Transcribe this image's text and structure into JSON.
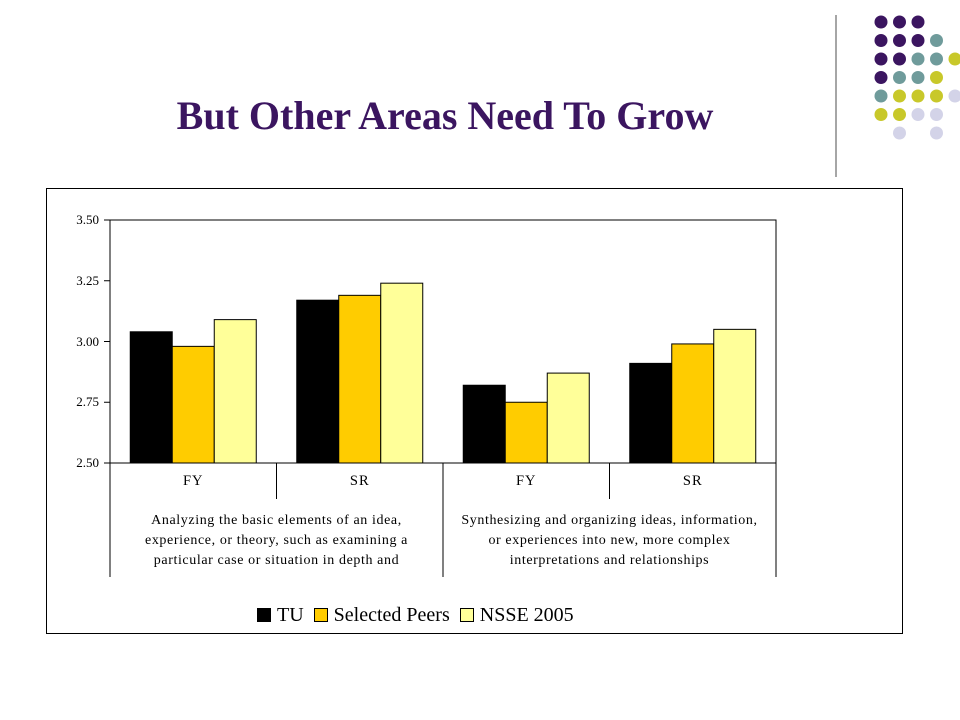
{
  "slide": {
    "title": "But Other Areas Need To Grow"
  },
  "decoration": {
    "dot_colors": [
      "#3b1560",
      "#6f9b9b",
      "#c8c82a",
      "#d3d3e8"
    ]
  },
  "chart_data": {
    "type": "bar",
    "categories": [
      "FY",
      "SR",
      "FY",
      "SR"
    ],
    "groups": [
      "Analyzing the basic elements of an idea, experience, or theory, such as examining a particular case or situation in depth and",
      "Synthesizing and organizing ideas, information, or experiences into new, more complex interpretations and relationships"
    ],
    "group_lines": [
      [
        "Analyzing the basic elements of an idea,",
        "experience, or theory, such as examining a",
        "particular case or situation in depth and"
      ],
      [
        "Synthesizing and organizing ideas, information,",
        "or experiences into new, more complex",
        "interpretations and relationships"
      ]
    ],
    "series": [
      {
        "name": "TU",
        "color": "#000000",
        "values": [
          3.04,
          3.17,
          2.82,
          2.91
        ]
      },
      {
        "name": "Selected Peers",
        "color": "#ffcc00",
        "values": [
          2.98,
          3.19,
          2.75,
          2.99
        ]
      },
      {
        "name": "NSSE 2005",
        "color": "#ffff99",
        "values": [
          3.09,
          3.24,
          2.87,
          3.05
        ]
      }
    ],
    "ylim": [
      2.5,
      3.5
    ],
    "yticks": [
      "2.50",
      "2.75",
      "3.00",
      "3.25",
      "3.50"
    ],
    "legend_position": "bottom",
    "grid": false,
    "title": "",
    "xlabel": "",
    "ylabel": ""
  }
}
